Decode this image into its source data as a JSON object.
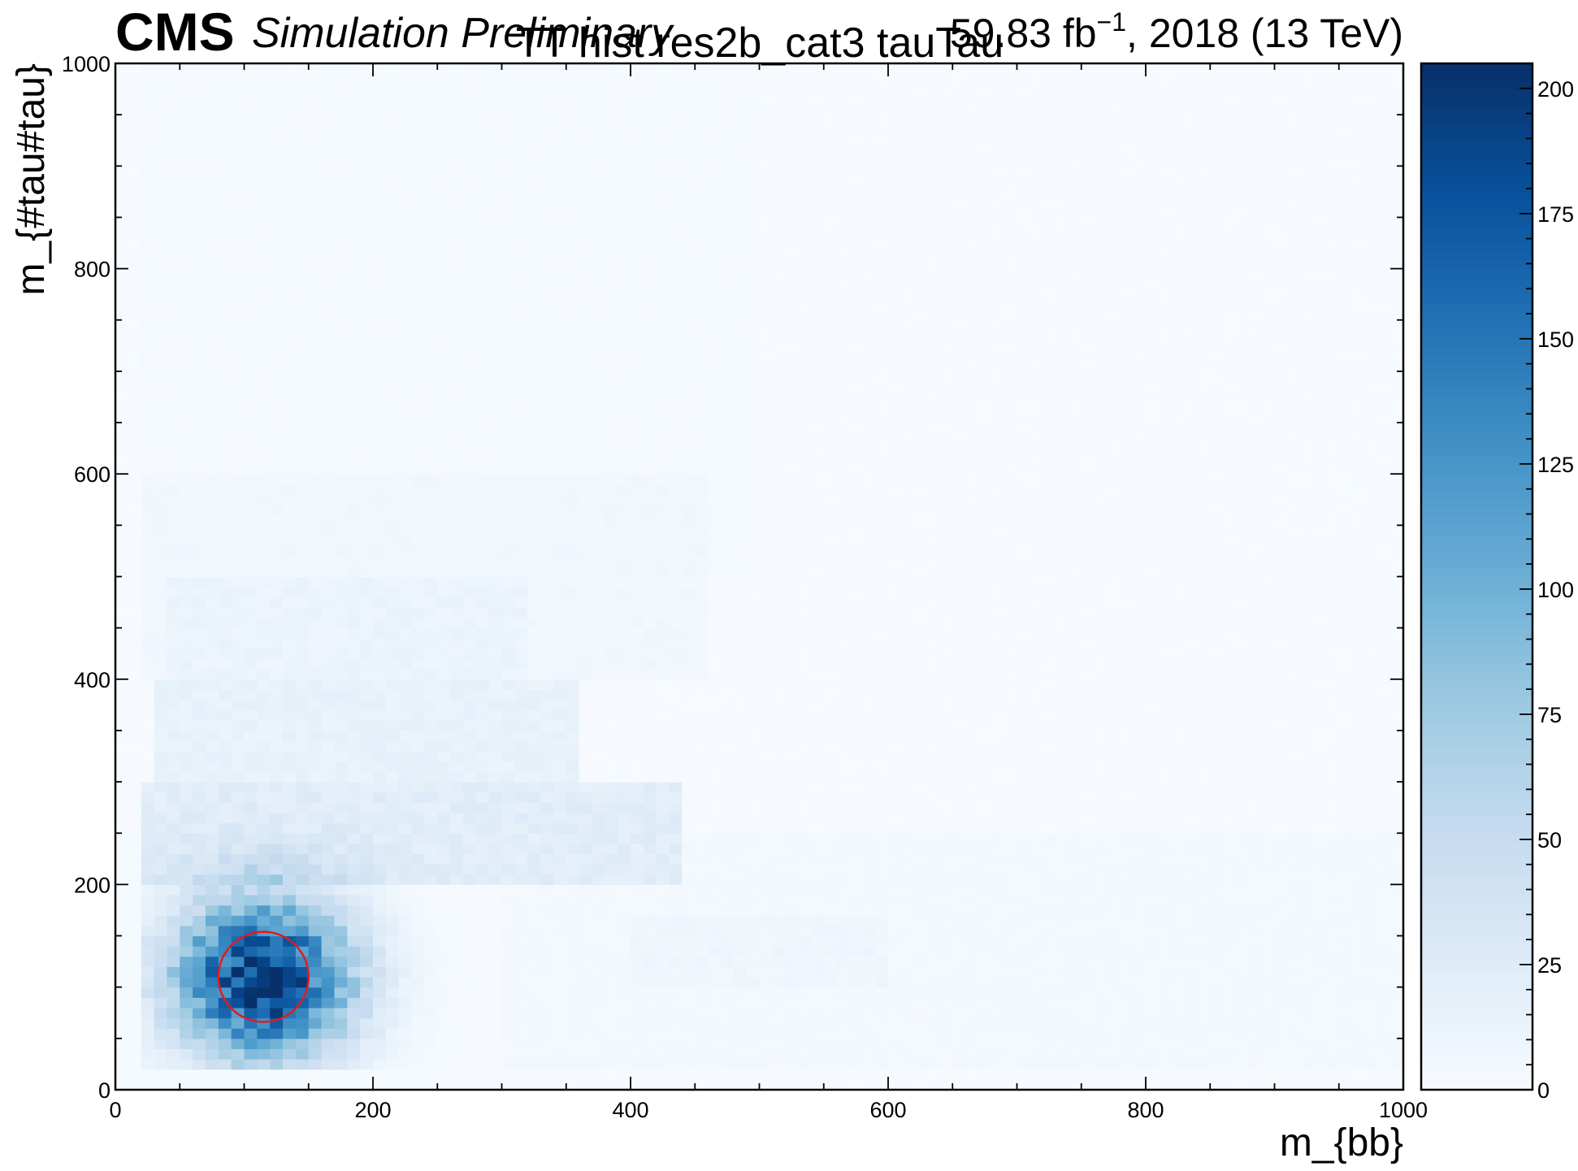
{
  "chart_data": {
    "type": "heatmap",
    "experiment": "CMS",
    "experiment_label": "Simulation Preliminary",
    "title": "TT hist res2b_cat3 tauTau",
    "lumi_prefix": "59.83 fb",
    "lumi_exp": "−1",
    "lumi_suffix": ", 2018 (13 TeV)",
    "xlabel": "m_{bb}",
    "ylabel": "m_{#tau#tau}",
    "xlim": [
      0,
      1000
    ],
    "ylim": [
      0,
      1000
    ],
    "x_ticks": [
      0,
      200,
      400,
      600,
      800,
      1000
    ],
    "y_ticks": [
      0,
      200,
      400,
      600,
      800,
      1000
    ],
    "colorbar": {
      "min": 0,
      "max": 205,
      "ticks": [
        0,
        25,
        50,
        75,
        100,
        125,
        150,
        175,
        200
      ],
      "colormap": "Blues"
    },
    "bin_width": 10,
    "peak": {
      "x": 115,
      "y": 110,
      "max_count": 205
    },
    "marker_circle": {
      "x": 115,
      "y": 110,
      "radius": 35,
      "color": "#e41a1c"
    },
    "regions": [
      {
        "x": [
          0,
          1000
        ],
        "y": [
          0,
          1000
        ],
        "count": 1
      },
      {
        "x": [
          20,
          500
        ],
        "y": [
          500,
          1000
        ],
        "count": 3
      },
      {
        "x": [
          20,
          460
        ],
        "y": [
          400,
          600
        ],
        "count": 6
      },
      {
        "x": [
          40,
          320
        ],
        "y": [
          400,
          500
        ],
        "count": 12
      },
      {
        "x": [
          30,
          360
        ],
        "y": [
          300,
          400
        ],
        "count": 15
      },
      {
        "x": [
          20,
          440
        ],
        "y": [
          200,
          300
        ],
        "count": 22
      },
      {
        "x": [
          300,
          1000
        ],
        "y": [
          20,
          250
        ],
        "count": 4
      },
      {
        "x": [
          400,
          600
        ],
        "y": [
          100,
          170
        ],
        "count": 8
      }
    ],
    "blob": {
      "center": [
        115,
        110
      ],
      "sigma": [
        48,
        55
      ],
      "amplitude": 200
    }
  }
}
